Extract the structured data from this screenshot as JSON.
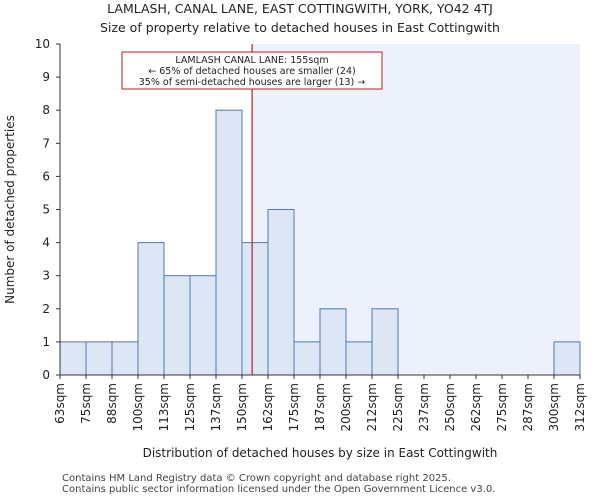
{
  "title": "LAMLASH, CANAL LANE, EAST COTTINGWITH, YORK, YO42 4TJ",
  "subtitle": "Size of property relative to detached houses in East Cottingwith",
  "footer": [
    "Contains HM Land Registry data © Crown copyright and database right 2025.",
    "Contains public sector information licensed under the Open Government Licence v3.0."
  ],
  "colors": {
    "bar_fill": "#dce6f4",
    "bar_stroke": "#4f79b3",
    "marker": "#b22222",
    "highlight_region": "#edf1fb"
  },
  "chart_data": {
    "type": "bar",
    "xlabel": "Distribution of detached houses by size in East Cottingwith",
    "ylabel": "Number of detached properties",
    "ylim": [
      0,
      10
    ],
    "y_ticks": [
      0,
      1,
      2,
      3,
      4,
      5,
      6,
      7,
      8,
      9,
      10
    ],
    "bin_labels": [
      "63sqm",
      "75sqm",
      "88sqm",
      "100sqm",
      "113sqm",
      "125sqm",
      "137sqm",
      "150sqm",
      "162sqm",
      "175sqm",
      "187sqm",
      "200sqm",
      "212sqm",
      "225sqm",
      "237sqm",
      "250sqm",
      "262sqm",
      "275sqm",
      "287sqm",
      "300sqm",
      "312sqm"
    ],
    "values": [
      1,
      1,
      1,
      4,
      3,
      3,
      8,
      4,
      5,
      1,
      2,
      1,
      2,
      0,
      0,
      0,
      0,
      0,
      0,
      1
    ],
    "grid": false,
    "property_marker": {
      "size_sqm": 155,
      "annotation": [
        "LAMLASH CANAL LANE: 155sqm",
        "← 65% of detached houses are smaller (24)",
        "35% of semi-detached houses are larger (13) →"
      ]
    }
  }
}
